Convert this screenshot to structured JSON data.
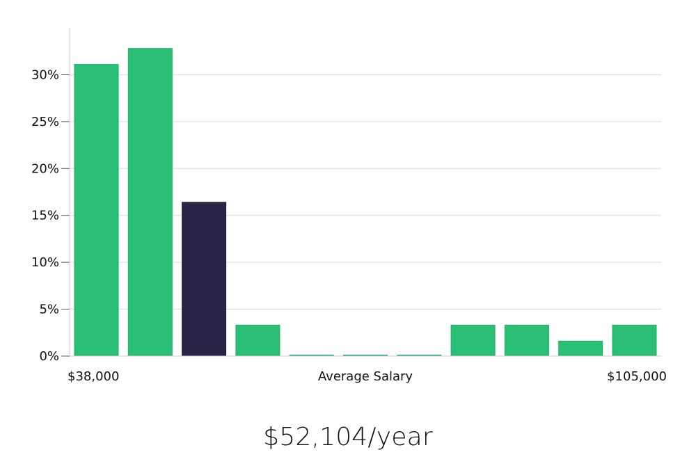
{
  "chart_data": {
    "type": "bar",
    "categories": [
      "",
      "",
      "",
      "",
      "",
      "",
      "",
      "",
      "",
      "",
      ""
    ],
    "values": [
      31.1,
      32.8,
      16.4,
      3.3,
      0,
      0,
      0,
      3.3,
      3.3,
      1.6,
      3.3
    ],
    "highlight_index": 2,
    "colors": {
      "bar": "#2abf75",
      "highlight": "#272447",
      "grid": "#d9d9d9",
      "axis": "#cccccc"
    },
    "ylim": [
      0,
      35
    ],
    "yticks": [
      {
        "value": 0,
        "label": "0%"
      },
      {
        "value": 5,
        "label": "5%"
      },
      {
        "value": 10,
        "label": "10%"
      },
      {
        "value": 15,
        "label": "15%"
      },
      {
        "value": 20,
        "label": "20%"
      },
      {
        "value": 25,
        "label": "25%"
      },
      {
        "value": 30,
        "label": "30%"
      }
    ],
    "x_labels": {
      "min": "$38,000",
      "center": "Average Salary",
      "max": "$105,000"
    },
    "grid": true
  },
  "summary": {
    "salary_text": "$52,104/year"
  }
}
